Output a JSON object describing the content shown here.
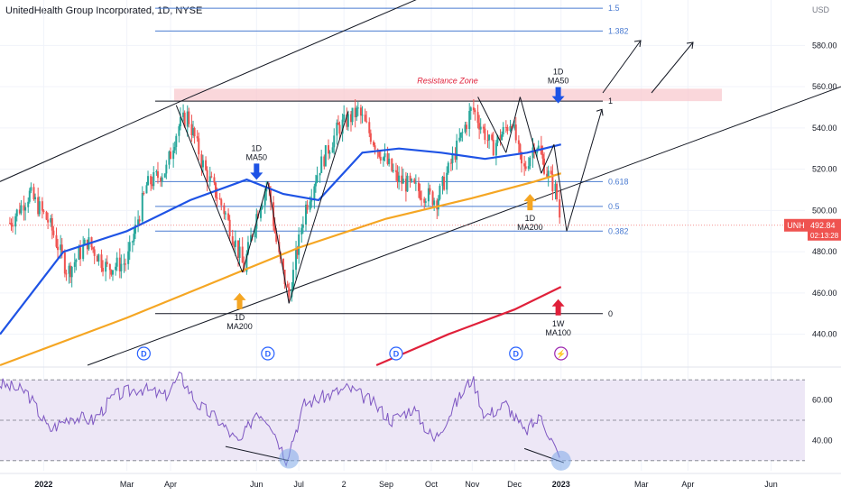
{
  "header": {
    "title": "UnitedHealth Group Incorporated, 1D, NYSE"
  },
  "colors": {
    "up": "#26a69a",
    "down": "#ef5350",
    "ma50": "#1e53e5",
    "ma200": "#f5a623",
    "ma100w": "#e0203a",
    "fib": "#4a7bd1",
    "rsi": "#7e57c2",
    "rsi_band": "#ede7f6",
    "resistance": "#f8c9cf",
    "price_badge": "#ef5350"
  },
  "chart_data": {
    "type": "candlestick",
    "title": "UnitedHealth Group Incorporated, 1D, NYSE",
    "currency": "USD",
    "price_axis": {
      "ylim": [
        425,
        602
      ],
      "ticks": [
        440,
        460,
        480,
        500,
        520,
        540,
        560,
        580
      ]
    },
    "time_axis": {
      "ticks": [
        {
          "label": "2022",
          "date": "2022-01-01"
        },
        {
          "label": "Mar",
          "date": "2022-03-01"
        },
        {
          "label": "Apr",
          "date": "2022-04-01"
        },
        {
          "label": "Jun",
          "date": "2022-06-01"
        },
        {
          "label": "Jul",
          "date": "2022-07-01"
        },
        {
          "label": "2",
          "date": "2022-08-02"
        },
        {
          "label": "Sep",
          "date": "2022-09-01"
        },
        {
          "label": "Oct",
          "date": "2022-10-03"
        },
        {
          "label": "Nov",
          "date": "2022-11-01"
        },
        {
          "label": "Dec",
          "date": "2022-12-01"
        },
        {
          "label": "2023",
          "date": "2023-01-03"
        },
        {
          "label": "Mar",
          "date": "2023-03-01"
        },
        {
          "label": "Apr",
          "date": "2023-04-03"
        },
        {
          "label": "Jun",
          "date": "2023-06-01"
        }
      ]
    },
    "close_path": [
      [
        "2021-12-08",
        494
      ],
      [
        "2021-12-22",
        508
      ],
      [
        "2022-01-05",
        494
      ],
      [
        "2022-01-18",
        470
      ],
      [
        "2022-02-01",
        485
      ],
      [
        "2022-02-15",
        472
      ],
      [
        "2022-03-01",
        475
      ],
      [
        "2022-03-15",
        512
      ],
      [
        "2022-03-29",
        520
      ],
      [
        "2022-04-06",
        540
      ],
      [
        "2022-04-13",
        546
      ],
      [
        "2022-04-25",
        520
      ],
      [
        "2022-05-09",
        500
      ],
      [
        "2022-05-23",
        472
      ],
      [
        "2022-06-01",
        498
      ],
      [
        "2022-06-09",
        514
      ],
      [
        "2022-06-16",
        480
      ],
      [
        "2022-06-24",
        458
      ],
      [
        "2022-07-05",
        500
      ],
      [
        "2022-07-15",
        520
      ],
      [
        "2022-07-29",
        540
      ],
      [
        "2022-08-12",
        548
      ],
      [
        "2022-08-26",
        530
      ],
      [
        "2022-09-09",
        515
      ],
      [
        "2022-09-23",
        510
      ],
      [
        "2022-10-07",
        505
      ],
      [
        "2022-10-21",
        530
      ],
      [
        "2022-11-01",
        550
      ],
      [
        "2022-11-15",
        530
      ],
      [
        "2022-11-29",
        544
      ],
      [
        "2022-12-07",
        518
      ],
      [
        "2022-12-16",
        534
      ],
      [
        "2022-12-23",
        520
      ],
      [
        "2022-12-30",
        510
      ],
      [
        "2023-01-03",
        493
      ]
    ],
    "moving_averages": [
      {
        "name": "1D MA50",
        "points": [
          [
            "2021-12-01",
            440
          ],
          [
            "2022-01-15",
            480
          ],
          [
            "2022-03-01",
            490
          ],
          [
            "2022-04-15",
            505
          ],
          [
            "2022-05-25",
            515
          ],
          [
            "2022-06-20",
            508
          ],
          [
            "2022-07-15",
            505
          ],
          [
            "2022-08-15",
            528
          ],
          [
            "2022-09-10",
            530
          ],
          [
            "2022-10-10",
            528
          ],
          [
            "2022-11-10",
            525
          ],
          [
            "2022-12-10",
            528
          ],
          [
            "2023-01-03",
            532
          ]
        ]
      },
      {
        "name": "1D MA200",
        "points": [
          [
            "2021-12-01",
            425
          ],
          [
            "2022-03-01",
            448
          ],
          [
            "2022-05-01",
            465
          ],
          [
            "2022-07-01",
            482
          ],
          [
            "2022-09-01",
            496
          ],
          [
            "2022-11-01",
            506
          ],
          [
            "2022-12-15",
            514
          ],
          [
            "2023-01-03",
            518
          ]
        ]
      },
      {
        "name": "1W MA100",
        "points": [
          [
            "2022-08-25",
            425
          ],
          [
            "2022-10-15",
            440
          ],
          [
            "2022-12-01",
            452
          ],
          [
            "2023-01-03",
            463
          ]
        ]
      }
    ],
    "fibonacci": {
      "levels": [
        {
          "label": "1.5",
          "price": 598
        },
        {
          "label": "1.382",
          "price": 587
        },
        {
          "label": "1",
          "price": 553
        },
        {
          "label": "0.618",
          "price": 514
        },
        {
          "label": "0.5",
          "price": 502
        },
        {
          "label": "0.382",
          "price": 490
        },
        {
          "label": "0",
          "price": 450
        }
      ]
    },
    "resistance_zone": {
      "label": "Resistance Zone",
      "low": 553,
      "high": 559
    },
    "annotations": [
      {
        "text": "1D MA50",
        "date": "2022-06-01",
        "price": 521,
        "arrow": "down",
        "color": "#1e53e5"
      },
      {
        "text": "1D MA50",
        "date": "2023-01-01",
        "price": 558,
        "arrow": "down",
        "color": "#1e53e5"
      },
      {
        "text": "1D MA200",
        "date": "2022-05-20",
        "price": 460,
        "arrow": "up",
        "color": "#f5a623"
      },
      {
        "text": "1D MA200",
        "date": "2022-12-12",
        "price": 508,
        "arrow": "up",
        "color": "#f5a623"
      },
      {
        "text": "1W MA100",
        "date": "2023-01-01",
        "price": 457,
        "arrow": "up",
        "color": "#e0203a"
      }
    ],
    "event_markers": [
      {
        "symbol": "D",
        "date": "2022-03-13"
      },
      {
        "symbol": "D",
        "date": "2022-06-09"
      },
      {
        "symbol": "D",
        "date": "2022-09-08"
      },
      {
        "symbol": "D",
        "date": "2022-12-02"
      },
      {
        "symbol": "⚡",
        "date": "2023-01-03"
      }
    ],
    "last_price": {
      "symbol": "UNH",
      "value": "492.84",
      "countdown": "02:13:28"
    },
    "rsi": {
      "ylim": [
        25,
        75
      ],
      "ticks": [
        40,
        60
      ],
      "band": [
        30,
        70
      ],
      "points": [
        [
          "2021-12-01",
          68
        ],
        [
          "2021-12-20",
          64
        ],
        [
          "2022-01-05",
          45
        ],
        [
          "2022-01-20",
          52
        ],
        [
          "2022-02-05",
          50
        ],
        [
          "2022-02-20",
          62
        ],
        [
          "2022-03-10",
          66
        ],
        [
          "2022-03-28",
          62
        ],
        [
          "2022-04-08",
          72
        ],
        [
          "2022-04-20",
          58
        ],
        [
          "2022-05-05",
          50
        ],
        [
          "2022-05-20",
          38
        ],
        [
          "2022-06-01",
          55
        ],
        [
          "2022-06-10",
          50
        ],
        [
          "2022-06-22",
          31
        ],
        [
          "2022-07-05",
          58
        ],
        [
          "2022-07-20",
          62
        ],
        [
          "2022-08-05",
          66
        ],
        [
          "2022-08-20",
          60
        ],
        [
          "2022-09-05",
          50
        ],
        [
          "2022-09-20",
          56
        ],
        [
          "2022-10-05",
          40
        ],
        [
          "2022-10-20",
          58
        ],
        [
          "2022-11-01",
          71
        ],
        [
          "2022-11-10",
          52
        ],
        [
          "2022-11-25",
          58
        ],
        [
          "2022-12-08",
          44
        ],
        [
          "2022-12-20",
          52
        ],
        [
          "2023-01-03",
          29
        ]
      ]
    }
  }
}
